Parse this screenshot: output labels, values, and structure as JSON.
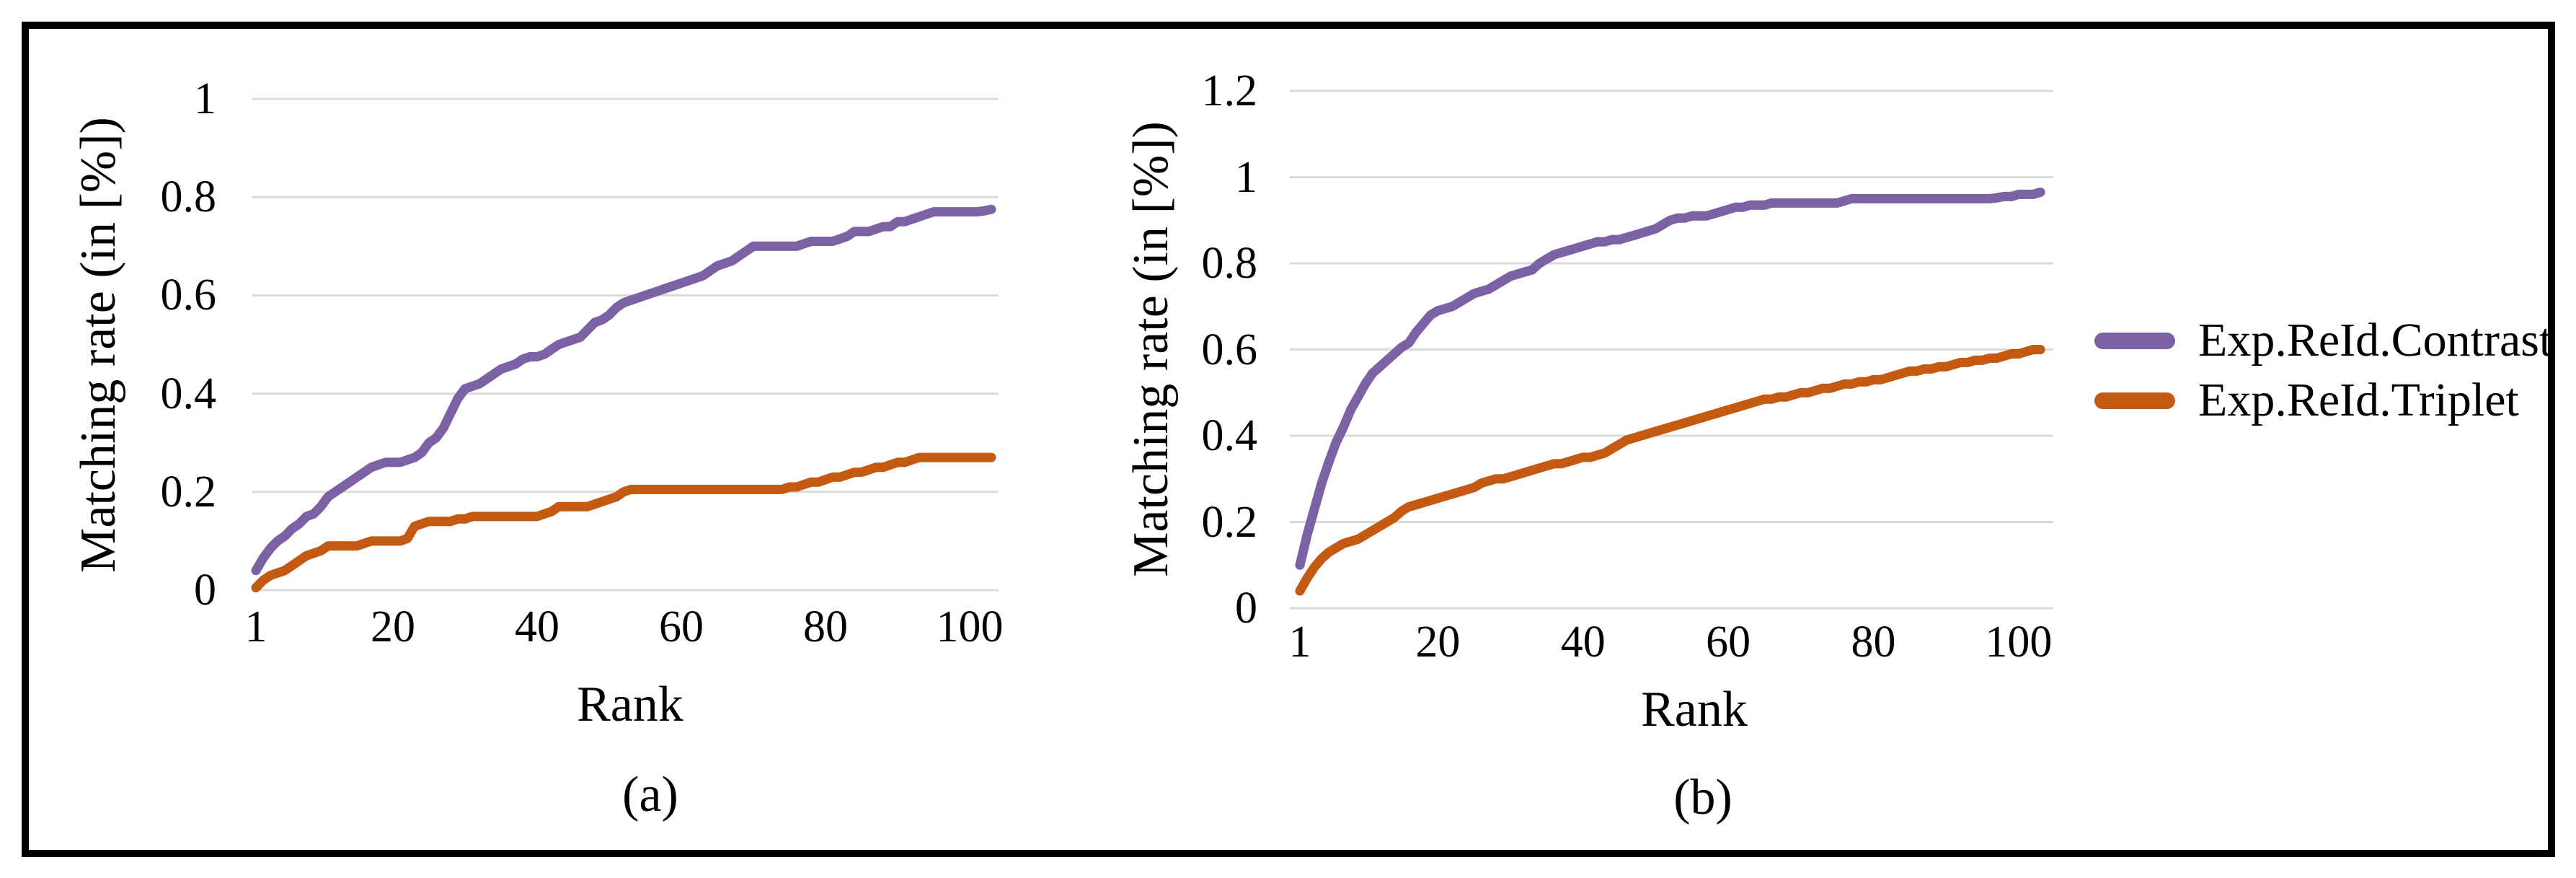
{
  "figure": {
    "legend": [
      {
        "label": "Exp.ReId.Contrast",
        "color": "#7C61A5"
      },
      {
        "label": "Exp.ReId.Triplet",
        "color": "#C45A11"
      }
    ],
    "grid_color": "#D9D9D9",
    "background": "#FFFFFF",
    "border_color": "#000000"
  },
  "chart_data": [
    {
      "type": "line",
      "id": "a",
      "caption": "(a)",
      "xlabel": "Rank",
      "ylabel": "Matching rate (in [%])",
      "x_ticks": [
        1,
        20,
        40,
        60,
        80,
        100
      ],
      "y_ticks": [
        "1",
        "0.8",
        "0.6",
        "0.4",
        "0.2",
        "0"
      ],
      "xlim": [
        1,
        103
      ],
      "ylim": [
        0,
        1
      ],
      "grid": true,
      "legend_position": "none",
      "series": [
        {
          "name": "Exp.ReId.Contrast",
          "color": "#7C61A5",
          "values": [
            0.04,
            0.065,
            0.085,
            0.1,
            0.11,
            0.125,
            0.135,
            0.15,
            0.155,
            0.17,
            0.19,
            0.2,
            0.21,
            0.22,
            0.23,
            0.24,
            0.25,
            0.255,
            0.26,
            0.26,
            0.26,
            0.265,
            0.27,
            0.28,
            0.3,
            0.31,
            0.33,
            0.36,
            0.39,
            0.41,
            0.415,
            0.42,
            0.43,
            0.44,
            0.45,
            0.455,
            0.46,
            0.47,
            0.475,
            0.475,
            0.48,
            0.49,
            0.5,
            0.505,
            0.51,
            0.515,
            0.53,
            0.545,
            0.55,
            0.56,
            0.575,
            0.585,
            0.59,
            0.595,
            0.6,
            0.605,
            0.61,
            0.615,
            0.62,
            0.625,
            0.63,
            0.635,
            0.64,
            0.65,
            0.66,
            0.665,
            0.67,
            0.68,
            0.69,
            0.7,
            0.7,
            0.7,
            0.7,
            0.7,
            0.7,
            0.7,
            0.705,
            0.71,
            0.71,
            0.71,
            0.71,
            0.715,
            0.72,
            0.73,
            0.73,
            0.73,
            0.735,
            0.74,
            0.74,
            0.75,
            0.75,
            0.755,
            0.76,
            0.765,
            0.77,
            0.77,
            0.77,
            0.77,
            0.77,
            0.77,
            0.77,
            0.772,
            0.775
          ]
        },
        {
          "name": "Exp.ReId.Triplet",
          "color": "#C45A11",
          "values": [
            0.005,
            0.02,
            0.03,
            0.035,
            0.04,
            0.05,
            0.06,
            0.07,
            0.075,
            0.08,
            0.09,
            0.09,
            0.09,
            0.09,
            0.09,
            0.095,
            0.1,
            0.1,
            0.1,
            0.1,
            0.1,
            0.105,
            0.13,
            0.135,
            0.14,
            0.14,
            0.14,
            0.14,
            0.145,
            0.145,
            0.15,
            0.15,
            0.15,
            0.15,
            0.15,
            0.15,
            0.15,
            0.15,
            0.15,
            0.15,
            0.155,
            0.16,
            0.17,
            0.17,
            0.17,
            0.17,
            0.17,
            0.175,
            0.18,
            0.185,
            0.19,
            0.2,
            0.205,
            0.205,
            0.205,
            0.205,
            0.205,
            0.205,
            0.205,
            0.205,
            0.205,
            0.205,
            0.205,
            0.205,
            0.205,
            0.205,
            0.205,
            0.205,
            0.205,
            0.205,
            0.205,
            0.205,
            0.205,
            0.205,
            0.21,
            0.21,
            0.215,
            0.22,
            0.22,
            0.225,
            0.23,
            0.23,
            0.235,
            0.24,
            0.24,
            0.245,
            0.25,
            0.25,
            0.255,
            0.26,
            0.26,
            0.265,
            0.27,
            0.27,
            0.27,
            0.27,
            0.27,
            0.27,
            0.27,
            0.27,
            0.27,
            0.27,
            0.27
          ]
        }
      ]
    },
    {
      "type": "line",
      "id": "b",
      "caption": "(b)",
      "xlabel": "Rank",
      "ylabel": "Matching rate (in [%])",
      "x_ticks": [
        1,
        20,
        40,
        60,
        80,
        100
      ],
      "y_ticks": [
        "1.2",
        "1",
        "0.8",
        "0.6",
        "0.4",
        "0.2",
        "0"
      ],
      "xlim": [
        1,
        103
      ],
      "ylim": [
        0,
        1.2
      ],
      "grid": true,
      "legend_position": "right",
      "series": [
        {
          "name": "Exp.ReId.Contrast",
          "color": "#7C61A5",
          "values": [
            0.1,
            0.17,
            0.23,
            0.29,
            0.34,
            0.385,
            0.42,
            0.46,
            0.49,
            0.52,
            0.545,
            0.56,
            0.575,
            0.59,
            0.605,
            0.615,
            0.64,
            0.66,
            0.68,
            0.69,
            0.695,
            0.7,
            0.71,
            0.72,
            0.73,
            0.735,
            0.74,
            0.75,
            0.76,
            0.77,
            0.775,
            0.78,
            0.785,
            0.8,
            0.81,
            0.82,
            0.825,
            0.83,
            0.835,
            0.84,
            0.845,
            0.85,
            0.85,
            0.855,
            0.855,
            0.86,
            0.865,
            0.87,
            0.875,
            0.88,
            0.89,
            0.9,
            0.905,
            0.905,
            0.91,
            0.91,
            0.91,
            0.915,
            0.92,
            0.925,
            0.93,
            0.93,
            0.935,
            0.935,
            0.935,
            0.94,
            0.94,
            0.94,
            0.94,
            0.94,
            0.94,
            0.94,
            0.94,
            0.94,
            0.94,
            0.945,
            0.95,
            0.95,
            0.95,
            0.95,
            0.95,
            0.95,
            0.95,
            0.95,
            0.95,
            0.95,
            0.95,
            0.95,
            0.95,
            0.95,
            0.95,
            0.95,
            0.95,
            0.95,
            0.95,
            0.95,
            0.952,
            0.955,
            0.955,
            0.96,
            0.96,
            0.96,
            0.965
          ]
        },
        {
          "name": "Exp.ReId.Triplet",
          "color": "#C45A11",
          "values": [
            0.04,
            0.07,
            0.095,
            0.115,
            0.13,
            0.14,
            0.15,
            0.155,
            0.16,
            0.17,
            0.18,
            0.19,
            0.2,
            0.21,
            0.225,
            0.235,
            0.24,
            0.245,
            0.25,
            0.255,
            0.26,
            0.265,
            0.27,
            0.275,
            0.28,
            0.29,
            0.295,
            0.3,
            0.3,
            0.305,
            0.31,
            0.315,
            0.32,
            0.325,
            0.33,
            0.335,
            0.335,
            0.34,
            0.345,
            0.35,
            0.35,
            0.355,
            0.36,
            0.37,
            0.38,
            0.39,
            0.395,
            0.4,
            0.405,
            0.41,
            0.415,
            0.42,
            0.425,
            0.43,
            0.435,
            0.44,
            0.445,
            0.45,
            0.455,
            0.46,
            0.465,
            0.47,
            0.475,
            0.48,
            0.485,
            0.485,
            0.49,
            0.49,
            0.495,
            0.5,
            0.5,
            0.505,
            0.51,
            0.51,
            0.515,
            0.52,
            0.52,
            0.525,
            0.525,
            0.53,
            0.53,
            0.535,
            0.54,
            0.545,
            0.55,
            0.55,
            0.555,
            0.555,
            0.56,
            0.56,
            0.565,
            0.57,
            0.57,
            0.575,
            0.575,
            0.58,
            0.58,
            0.585,
            0.59,
            0.59,
            0.595,
            0.6,
            0.6
          ]
        }
      ]
    }
  ]
}
